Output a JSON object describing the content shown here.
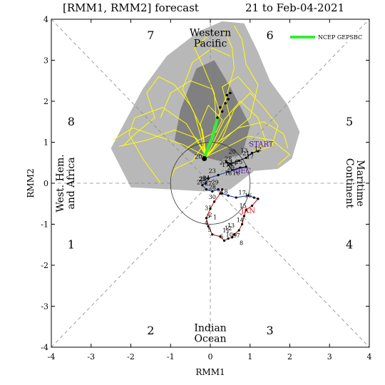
{
  "chart_data": {
    "type": "line",
    "title": "[RMM1, RMM2] forecast",
    "title_right": "21 to Feb-04-2021",
    "xlabel": "RMM1",
    "ylabel": "RMM2",
    "xlim": [
      -4,
      4
    ],
    "ylim": [
      -4,
      4
    ],
    "xticks": [
      "-4",
      "-3",
      "-2",
      "-1",
      "0",
      "1",
      "2",
      "3",
      "4"
    ],
    "yticks": [
      "-4",
      "-3",
      "-2",
      "-1",
      "0",
      "1",
      "2",
      "3",
      "4"
    ],
    "grid": false,
    "legend_position": "top-right",
    "legend": [
      {
        "label": "NCEP GEPSBC",
        "color": "#33ee33"
      }
    ],
    "phase_labels": [
      {
        "label": "1",
        "x": -3.5,
        "y": -1.5
      },
      {
        "label": "2",
        "x": -1.5,
        "y": -3.6
      },
      {
        "label": "3",
        "x": 1.5,
        "y": -3.6
      },
      {
        "label": "4",
        "x": 3.5,
        "y": -1.5
      },
      {
        "label": "5",
        "x": 3.5,
        "y": 1.5
      },
      {
        "label": "6",
        "x": 1.5,
        "y": 3.6
      },
      {
        "label": "7",
        "x": -1.5,
        "y": 3.6
      },
      {
        "label": "8",
        "x": -3.5,
        "y": 1.5
      }
    ],
    "regions": [
      {
        "lines": [
          "Western",
          "Pacific"
        ],
        "x": 0,
        "y": 3.55,
        "rotate": 0
      },
      {
        "lines": [
          "Indian",
          "Ocean"
        ],
        "x": 0,
        "y": -3.65,
        "rotate": 0
      },
      {
        "lines": [
          "West. Hem.",
          "and Africa"
        ],
        "x": -3.65,
        "y": 0,
        "rotate": -90
      },
      {
        "lines": [
          "Maritime",
          "Continent"
        ],
        "x": 3.65,
        "y": 0,
        "rotate": 90
      }
    ],
    "colors": {
      "observed_start": "#000000",
      "observed_dec": "#1e3fa8",
      "observed_jan": "#d01818",
      "month_start": "#5a1f9c",
      "month_dec": "#5a1f9c",
      "month_jan": "#d01818",
      "ensemble": "#ffff00",
      "ensemble_mean": "#33ee33",
      "spread_outer": "#b8b8b8",
      "spread_inner": "#808080"
    },
    "spread_outer": [
      [
        -2.5,
        0.85
      ],
      [
        -2.2,
        1.4
      ],
      [
        -1.7,
        2.3
      ],
      [
        -1.1,
        3.1
      ],
      [
        -0.3,
        3.7
      ],
      [
        0.3,
        3.95
      ],
      [
        0.85,
        3.9
      ],
      [
        1.2,
        3.2
      ],
      [
        1.5,
        2.5
      ],
      [
        1.95,
        1.9
      ],
      [
        2.25,
        1.25
      ],
      [
        2.05,
        0.6
      ],
      [
        1.7,
        0.35
      ],
      [
        1.1,
        0.3
      ],
      [
        0.5,
        -0.15
      ],
      [
        -0.15,
        -0.2
      ],
      [
        -1,
        -0.15
      ],
      [
        -2,
        -0.1
      ]
    ],
    "spread_inner": [
      [
        -0.9,
        1.05
      ],
      [
        -0.75,
        1.8
      ],
      [
        -0.35,
        2.8
      ],
      [
        0.1,
        3.0
      ],
      [
        0.5,
        2.35
      ],
      [
        1.0,
        1.4
      ],
      [
        0.8,
        0.7
      ],
      [
        0.2,
        0.55
      ],
      [
        -0.4,
        0.7
      ]
    ],
    "ensemble_members": [
      [
        [
          -0.1,
          0.65
        ],
        [
          -0.2,
          1.3
        ],
        [
          -0.5,
          1.9
        ],
        [
          -0.9,
          2.4
        ],
        [
          -1.3,
          2.6
        ],
        [
          -1.6,
          2.2
        ],
        [
          -1.4,
          1.6
        ],
        [
          -1.9,
          1.2
        ],
        [
          -2.2,
          0.9
        ]
      ],
      [
        [
          -0.1,
          0.65
        ],
        [
          0.1,
          1.4
        ],
        [
          0.4,
          2.1
        ],
        [
          0.6,
          2.8
        ],
        [
          0.55,
          3.3
        ],
        [
          0.35,
          3.75
        ]
      ],
      [
        [
          -0.1,
          0.65
        ],
        [
          0.3,
          1.1
        ],
        [
          0.6,
          1.8
        ],
        [
          1.0,
          2.2
        ],
        [
          1.3,
          1.9
        ],
        [
          1.7,
          1.4
        ],
        [
          1.55,
          0.9
        ],
        [
          1.2,
          0.8
        ]
      ],
      [
        [
          -0.1,
          0.65
        ],
        [
          -0.35,
          1.1
        ],
        [
          -0.9,
          1.3
        ],
        [
          -1.6,
          1.05
        ],
        [
          -2.3,
          0.9
        ]
      ],
      [
        [
          -0.1,
          0.65
        ],
        [
          0.15,
          1.5
        ],
        [
          0.1,
          2.2
        ],
        [
          -0.2,
          2.9
        ],
        [
          -0.4,
          3.3
        ],
        [
          -0.05,
          3.6
        ]
      ],
      [
        [
          -0.1,
          0.65
        ],
        [
          0.5,
          1.2
        ],
        [
          1.0,
          1.6
        ],
        [
          1.2,
          2.4
        ],
        [
          0.9,
          2.9
        ],
        [
          0.8,
          3.5
        ],
        [
          0.6,
          3.85
        ]
      ],
      [
        [
          -0.1,
          0.65
        ],
        [
          -0.6,
          1.45
        ],
        [
          -1.2,
          1.85
        ],
        [
          -1.9,
          1.6
        ],
        [
          -2.05,
          1.2
        ],
        [
          -1.7,
          0.6
        ],
        [
          -1.25,
          0.0
        ]
      ],
      [
        [
          -0.1,
          0.65
        ],
        [
          0.2,
          1.0
        ],
        [
          0.7,
          1.35
        ],
        [
          1.35,
          1.5
        ],
        [
          1.85,
          1.2
        ],
        [
          1.95,
          0.85
        ]
      ],
      [
        [
          -0.1,
          0.65
        ],
        [
          -0.2,
          0.9
        ],
        [
          -0.45,
          0.55
        ],
        [
          -0.9,
          0.35
        ],
        [
          -1.0,
          0.1
        ]
      ],
      [
        [
          -0.1,
          0.65
        ],
        [
          0.05,
          1.2
        ],
        [
          0.25,
          1.7
        ],
        [
          0.05,
          2.3
        ],
        [
          -0.5,
          2.5
        ],
        [
          -1.0,
          2.2
        ],
        [
          -1.25,
          1.6
        ]
      ],
      [
        [
          -0.1,
          0.65
        ],
        [
          0.35,
          1.55
        ],
        [
          0.75,
          2.0
        ],
        [
          1.2,
          1.6
        ],
        [
          1.4,
          1.0
        ],
        [
          1.05,
          0.75
        ]
      ],
      [
        [
          -0.1,
          0.65
        ],
        [
          -0.4,
          1.7
        ],
        [
          -0.7,
          2.3
        ],
        [
          -0.45,
          2.95
        ],
        [
          0.05,
          3.3
        ],
        [
          0.5,
          3.1
        ]
      ],
      [
        [
          -0.1,
          0.65
        ],
        [
          0.45,
          0.9
        ],
        [
          0.95,
          1.15
        ],
        [
          1.55,
          1.05
        ],
        [
          2.0,
          0.7
        ],
        [
          1.7,
          0.45
        ]
      ],
      [
        [
          -0.1,
          0.65
        ],
        [
          -0.7,
          0.95
        ],
        [
          -1.35,
          1.15
        ],
        [
          -1.95,
          1.35
        ],
        [
          -2.45,
          1.05
        ]
      ],
      [
        [
          -0.1,
          0.65
        ],
        [
          0.1,
          0.9
        ],
        [
          0.5,
          1.6
        ],
        [
          0.3,
          2.35
        ],
        [
          0.7,
          2.6
        ],
        [
          1.15,
          2.1
        ]
      ],
      [
        [
          -0.1,
          0.65
        ],
        [
          -0.25,
          1.45
        ],
        [
          -0.05,
          1.9
        ],
        [
          0.3,
          1.55
        ],
        [
          0.15,
          1.25
        ],
        [
          -0.3,
          1.05
        ],
        [
          -0.6,
          0.85
        ]
      ]
    ],
    "ensemble_mean": [
      [
        -0.15,
        0.6
      ],
      [
        -0.05,
        0.9
      ],
      [
        0.05,
        1.1
      ],
      [
        0.12,
        1.35
      ],
      [
        0.18,
        1.6
      ]
    ],
    "ensemble_mean_dots": [
      [
        0.18,
        1.6
      ],
      [
        0.3,
        1.75
      ],
      [
        0.38,
        1.95
      ],
      [
        0.45,
        2.05
      ],
      [
        0.5,
        2.2
      ],
      [
        0.42,
        2.15
      ],
      [
        0.25,
        1.85
      ]
    ],
    "observed": {
      "start_segment": [
        [
          1.2,
          0.78
        ],
        [
          1.05,
          0.74
        ],
        [
          0.9,
          0.62
        ],
        [
          0.72,
          0.55
        ],
        [
          0.5,
          0.47
        ],
        [
          0.4,
          0.52
        ],
        [
          0.55,
          0.32
        ],
        [
          0.75,
          0.38
        ],
        [
          0.9,
          0.4
        ]
      ],
      "dec_segment": [
        [
          0.9,
          0.4
        ],
        [
          0.45,
          0.28
        ],
        [
          0.2,
          0.2
        ],
        [
          -0.05,
          0.12
        ],
        [
          -0.12,
          0.0
        ],
        [
          -0.2,
          -0.05
        ],
        [
          -0.1,
          -0.15
        ],
        [
          0.05,
          -0.2
        ],
        [
          0.2,
          -0.15
        ],
        [
          0.3,
          -0.25
        ],
        [
          0.45,
          -0.3
        ],
        [
          0.65,
          -0.35
        ],
        [
          0.95,
          -0.3
        ],
        [
          1.1,
          -0.35
        ],
        [
          1.2,
          -0.38
        ]
      ],
      "jan_segment": [
        [
          1.2,
          -0.38
        ],
        [
          1.05,
          -0.55
        ],
        [
          0.9,
          -0.65
        ],
        [
          0.85,
          -0.8
        ],
        [
          0.8,
          -1.0
        ],
        [
          0.72,
          -1.15
        ],
        [
          0.6,
          -1.25
        ],
        [
          0.55,
          -1.32
        ],
        [
          0.45,
          -1.35
        ],
        [
          0.35,
          -1.4
        ],
        [
          0.25,
          -1.3
        ],
        [
          0.05,
          -1.25
        ],
        [
          -0.05,
          -1.05
        ],
        [
          -0.1,
          -0.85
        ],
        [
          0.0,
          -0.62
        ],
        [
          0.1,
          -0.45
        ],
        [
          0.25,
          -0.25
        ],
        [
          0.3,
          -0.15
        ]
      ],
      "end_point": [
        -0.15,
        0.6
      ],
      "day_labels": [
        {
          "label": "17",
          "x": 1.0,
          "y": 0.6
        },
        {
          "label": "15",
          "x": 0.72,
          "y": 0.47
        },
        {
          "label": "13",
          "x": 0.85,
          "y": 0.75
        },
        {
          "label": "12",
          "x": 1.2,
          "y": 0.78
        },
        {
          "label": "20",
          "x": 0.55,
          "y": 0.72
        },
        {
          "label": "21",
          "x": 0.9,
          "y": 0.68
        },
        {
          "label": "28",
          "x": 0.45,
          "y": 0.55
        },
        {
          "label": "27",
          "x": 0.32,
          "y": 0.46
        },
        {
          "label": "29",
          "x": 0.52,
          "y": 0.33
        },
        {
          "label": "22",
          "x": 0.5,
          "y": 0.42
        },
        {
          "label": "18",
          "x": 0.45,
          "y": 0.2
        },
        {
          "label": "16",
          "x": 0.65,
          "y": 0.2
        },
        {
          "label": "17",
          "x": 0.38,
          "y": 0.4
        },
        {
          "label": "14",
          "x": 0.58,
          "y": 0.44
        },
        {
          "label": "23",
          "x": 0.05,
          "y": 0.25
        },
        {
          "label": "24",
          "x": -0.1,
          "y": 0.08
        },
        {
          "label": "25",
          "x": -0.2,
          "y": 0.05
        },
        {
          "label": "26",
          "x": -0.25,
          "y": -0.03
        },
        {
          "label": "20",
          "x": -0.18,
          "y": 0.06
        },
        {
          "label": "27",
          "x": -0.05,
          "y": -0.05
        },
        {
          "label": "28",
          "x": 0.05,
          "y": -0.15
        },
        {
          "label": "29",
          "x": 0.12,
          "y": -0.03
        },
        {
          "label": "30",
          "x": 0.05,
          "y": -0.38
        },
        {
          "label": "18",
          "x": 0.35,
          "y": -0.25
        },
        {
          "label": "17",
          "x": 0.8,
          "y": -0.28
        },
        {
          "label": "16",
          "x": 0.95,
          "y": -0.35
        },
        {
          "label": "15",
          "x": 0.82,
          "y": -0.6
        },
        {
          "label": "14",
          "x": 0.75,
          "y": -0.95
        },
        {
          "label": "13",
          "x": 0.52,
          "y": -1.08
        },
        {
          "label": "12",
          "x": 0.45,
          "y": -1.15
        },
        {
          "label": "11",
          "x": 0.4,
          "y": -1.2
        },
        {
          "label": "10",
          "x": 0.48,
          "y": -1.3
        },
        {
          "label": "9",
          "x": 0.62,
          "y": -1.32
        },
        {
          "label": "8",
          "x": 0.78,
          "y": -1.5
        },
        {
          "label": "7",
          "x": 0.7,
          "y": -1.32
        },
        {
          "label": "6",
          "x": 0.28,
          "y": -1.35
        },
        {
          "label": "5",
          "x": -0.02,
          "y": -1.18
        },
        {
          "label": "4",
          "x": -0.1,
          "y": -1.02
        },
        {
          "label": "3",
          "x": -0.05,
          "y": -0.85
        },
        {
          "label": "31",
          "x": -0.05,
          "y": -0.65
        },
        {
          "label": "2",
          "x": 0.0,
          "y": -0.82
        },
        {
          "label": "1",
          "x": 0.12,
          "y": -0.88
        },
        {
          "label": "20",
          "x": -0.3,
          "y": 0.6
        }
      ],
      "month_labels": [
        {
          "label": "START",
          "x": 1.28,
          "y": 0.9,
          "color_key": "month_start"
        },
        {
          "label": "DEC",
          "x": 0.82,
          "y": 0.24,
          "color_key": "month_dec"
        },
        {
          "label": "JAN",
          "x": 0.95,
          "y": -0.73,
          "color_key": "month_jan"
        }
      ]
    }
  }
}
